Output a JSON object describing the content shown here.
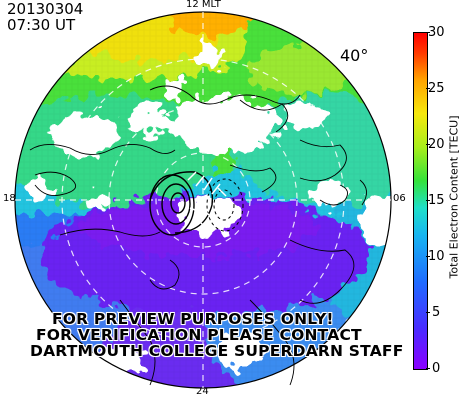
{
  "header": {
    "date": "20130304",
    "time": "07:30 UT"
  },
  "map": {
    "mlt_labels": {
      "top": "12 MLT",
      "left": "18",
      "right": "06",
      "bottom": "24"
    },
    "latitude_label": "40°"
  },
  "watermark": {
    "lines": [
      "FOR PREVIEW PURPOSES ONLY!",
      "FOR VERIFICATION PLEASE CONTACT",
      "DARTMOUTH COLLEGE SUPERDARN STAFF"
    ]
  },
  "colorbar": {
    "title": "Total Electron Content [TECU]",
    "ticks": [
      "0",
      "5",
      "10",
      "15",
      "20",
      "25",
      "30"
    ],
    "min": 0,
    "max": 30
  }
}
